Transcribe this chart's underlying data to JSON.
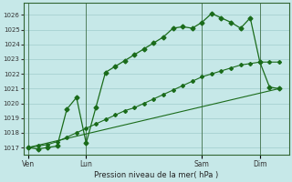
{
  "background_color": "#c6e8e8",
  "grid_color": "#a0cccc",
  "line_color": "#1a6b1a",
  "title": "Pression niveau de la mer( hPa )",
  "ylim": [
    1016.5,
    1026.8
  ],
  "yticks": [
    1017,
    1018,
    1019,
    1020,
    1021,
    1022,
    1023,
    1024,
    1025,
    1026
  ],
  "day_labels": [
    "Ven",
    "Lun",
    "Sam",
    "Dim"
  ],
  "day_positions": [
    0,
    24,
    72,
    96
  ],
  "xlim": [
    -2,
    108
  ],
  "line1_x": [
    0,
    4,
    8,
    12,
    16,
    20,
    24,
    28,
    32,
    36,
    40,
    44,
    48,
    52,
    56,
    60,
    64,
    68,
    72,
    76,
    80,
    84,
    88,
    92,
    96,
    100,
    104
  ],
  "line1_y": [
    1017.0,
    1016.9,
    1017.0,
    1017.1,
    1019.6,
    1020.4,
    1017.3,
    1019.7,
    1022.1,
    1022.5,
    1022.9,
    1023.3,
    1023.7,
    1024.1,
    1024.5,
    1025.1,
    1025.2,
    1025.1,
    1025.5,
    1026.1,
    1025.8,
    1025.5,
    1025.1,
    1025.8,
    1022.8,
    1021.1,
    1021.0
  ],
  "line2_x": [
    0,
    4,
    8,
    12,
    16,
    20,
    24,
    28,
    32,
    36,
    40,
    44,
    48,
    52,
    56,
    60,
    64,
    68,
    72,
    76,
    80,
    84,
    88,
    92,
    96,
    100,
    104
  ],
  "line2_y": [
    1017.0,
    1017.1,
    1017.2,
    1017.4,
    1017.7,
    1018.0,
    1018.3,
    1018.6,
    1018.9,
    1019.2,
    1019.5,
    1019.7,
    1020.0,
    1020.3,
    1020.6,
    1020.9,
    1021.2,
    1021.5,
    1021.8,
    1022.0,
    1022.2,
    1022.4,
    1022.6,
    1022.7,
    1022.8,
    1022.8,
    1022.8
  ],
  "line3_x": [
    0,
    104
  ],
  "line3_y": [
    1017.0,
    1021.0
  ],
  "vline_positions": [
    0,
    24,
    72,
    96
  ]
}
